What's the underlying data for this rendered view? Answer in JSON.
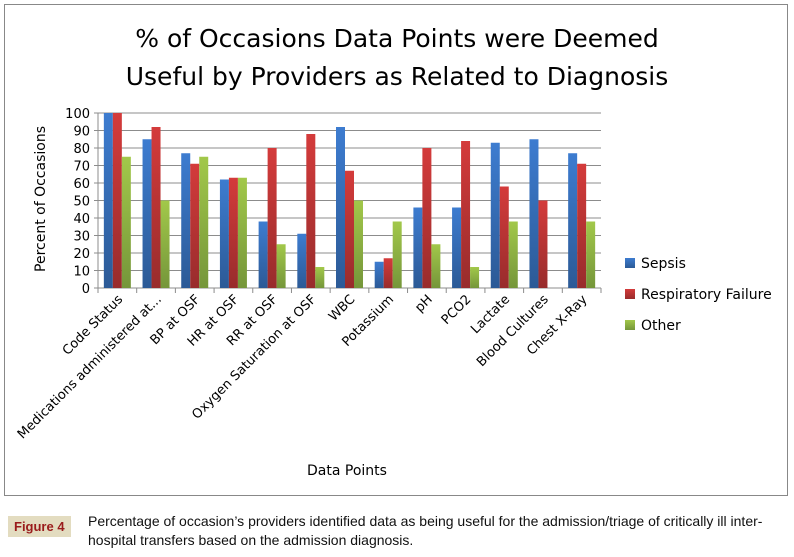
{
  "chart_data": {
    "type": "bar",
    "title": "% of Occasions Data Points were Deemed Useful by Providers as Related to Diagnosis",
    "title_lines": [
      "% of Occasions Data Points were Deemed",
      "Useful by Providers as Related to Diagnosis"
    ],
    "xlabel": "Data Points",
    "ylabel": "Percent of Occasions",
    "ylim": [
      0,
      100
    ],
    "yticks": [
      0,
      10,
      20,
      30,
      40,
      50,
      60,
      70,
      80,
      90,
      100
    ],
    "grid": true,
    "legend_position": "right",
    "categories": [
      "Code Status",
      "Medications administered at...",
      "BP at OSF",
      "HR at OSF",
      "RR at OSF",
      "Oxygen Saturation at OSF",
      "WBC",
      "Potassium",
      "pH",
      "PCO2",
      "Lactate",
      "Blood Cultures",
      "Chest X-Ray"
    ],
    "series": [
      {
        "name": "Sepsis",
        "color": "#4a7ebb",
        "values": [
          100,
          85,
          77,
          62,
          38,
          31,
          92,
          15,
          46,
          46,
          83,
          85,
          77
        ]
      },
      {
        "name": "Respiratory Failure",
        "color": "#be4b48",
        "values": [
          100,
          92,
          71,
          63,
          80,
          88,
          67,
          17,
          80,
          84,
          58,
          50,
          71
        ]
      },
      {
        "name": "Other",
        "color": "#98b954",
        "values": [
          75,
          50,
          75,
          63,
          25,
          12,
          50,
          38,
          25,
          12,
          38,
          0,
          38
        ]
      }
    ]
  },
  "caption": {
    "label": "Figure 4",
    "text": "Percentage of occasion’s providers identified data as being useful for the admission/triage of critically ill inter-hospital transfers based on the admission diagnosis."
  }
}
